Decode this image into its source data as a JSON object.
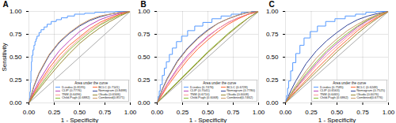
{
  "chart_data": [
    {
      "type": "line",
      "title": "A",
      "xlabel": "1 - Specificity",
      "ylabel": "Sensitivity",
      "xlim": [
        0,
        1
      ],
      "ylim": [
        0,
        1
      ],
      "xticks": [
        {
          "value": 0,
          "label": "0.00"
        },
        0.25,
        {
          "value": 0.5,
          "label": "0.50"
        },
        0.75,
        {
          "value": 1,
          "label": "1.00"
        }
      ],
      "yticks": [
        {
          "value": 0,
          "label": "0.00"
        },
        0.25,
        {
          "value": 0.5,
          "label": "0.50"
        },
        0.75,
        {
          "value": 1,
          "label": "1.00"
        }
      ],
      "grid": true,
      "legend": "lower right",
      "legend_title": "Area under the curve",
      "series": [
        {
          "color": "#aaaaaa",
          "type": "line",
          "x": [
            0,
            1
          ],
          "values": [
            0,
            1
          ]
        },
        {
          "name": "D-index (0.8195)",
          "color": "#5599FF",
          "type": "step",
          "x": [
            0,
            0.005,
            0.01,
            0.015,
            0.02,
            0.025,
            0.03,
            0.04,
            0.05,
            0.06,
            0.07,
            0.08,
            0.1,
            0.12,
            0.15,
            0.18,
            0.22,
            0.27,
            0.32,
            0.38,
            0.45,
            0.55,
            0.65,
            0.75,
            0.85,
            1.0
          ],
          "values": [
            0,
            0.05,
            0.12,
            0.22,
            0.35,
            0.45,
            0.52,
            0.58,
            0.63,
            0.67,
            0.7,
            0.73,
            0.77,
            0.8,
            0.83,
            0.86,
            0.89,
            0.91,
            0.93,
            0.95,
            0.97,
            0.98,
            0.99,
            0.995,
            1.0,
            1.0
          ]
        },
        {
          "name": "CLIP (0.7776)",
          "color": "#BB44BB",
          "type": "line",
          "x": [
            0,
            0.05,
            0.1,
            0.2,
            0.3,
            0.4,
            0.5,
            0.6,
            0.7,
            0.8,
            0.9,
            1.0
          ],
          "values": [
            0,
            0.13,
            0.24,
            0.42,
            0.57,
            0.68,
            0.78,
            0.85,
            0.91,
            0.95,
            0.98,
            1.0
          ]
        },
        {
          "name": "TNM (0.6496)",
          "color": "#FF9999",
          "type": "line",
          "x": [
            0,
            0.05,
            0.1,
            0.2,
            0.3,
            0.4,
            0.5,
            0.6,
            0.7,
            0.8,
            0.9,
            1.0
          ],
          "values": [
            0,
            0.1,
            0.19,
            0.35,
            0.48,
            0.6,
            0.7,
            0.79,
            0.86,
            0.92,
            0.97,
            1.0
          ]
        },
        {
          "name": "Child-Pugh (0.6882)",
          "color": "#88BB33",
          "type": "line",
          "x": [
            0,
            0.05,
            0.1,
            0.2,
            0.3,
            0.4,
            0.5,
            0.6,
            0.7,
            0.8,
            0.9,
            1.0
          ],
          "values": [
            0,
            0.09,
            0.17,
            0.32,
            0.46,
            0.58,
            0.68,
            0.77,
            0.85,
            0.91,
            0.96,
            1.0
          ]
        },
        {
          "name": "BCLC (0.7141)",
          "color": "#FF6633",
          "type": "line",
          "x": [
            0,
            0.05,
            0.1,
            0.2,
            0.3,
            0.4,
            0.5,
            0.6,
            0.7,
            0.8,
            0.9,
            1.0
          ],
          "values": [
            0,
            0.11,
            0.21,
            0.38,
            0.52,
            0.63,
            0.72,
            0.81,
            0.88,
            0.93,
            0.97,
            1.0
          ]
        },
        {
          "name": "Nomogram (0.8488)",
          "color": "#334499",
          "type": "line",
          "x": [
            0,
            0.05,
            0.1,
            0.2,
            0.3,
            0.4,
            0.5,
            0.6,
            0.7,
            0.8,
            0.9,
            1.0
          ],
          "values": [
            0,
            0.18,
            0.32,
            0.52,
            0.66,
            0.76,
            0.84,
            0.9,
            0.94,
            0.97,
            0.99,
            1.0
          ]
        },
        {
          "name": "Okuda (0.6346)",
          "color": "#998833",
          "type": "line",
          "x": [
            0,
            0.05,
            0.1,
            0.2,
            0.3,
            0.4,
            0.5,
            0.6,
            0.7,
            0.8,
            0.9,
            1.0
          ],
          "values": [
            0,
            0.08,
            0.15,
            0.29,
            0.42,
            0.54,
            0.65,
            0.74,
            0.82,
            0.89,
            0.95,
            1.0
          ]
        },
        {
          "name": "Combined(0.8571)",
          "color": "#CC9966",
          "type": "line",
          "x": [
            0,
            0.05,
            0.1,
            0.2,
            0.3,
            0.4,
            0.5,
            0.6,
            0.7,
            0.8,
            0.9,
            1.0
          ],
          "values": [
            0,
            0.19,
            0.33,
            0.53,
            0.67,
            0.77,
            0.85,
            0.91,
            0.95,
            0.97,
            0.99,
            1.0
          ]
        }
      ]
    },
    {
      "type": "line",
      "title": "B",
      "xlabel": "1 - Specificity",
      "xlim": [
        0,
        1
      ],
      "ylim": [
        0,
        1
      ],
      "xticks": [
        {
          "value": 0,
          "label": "0.00"
        },
        0.25,
        {
          "value": 0.5,
          "label": "0.50"
        },
        0.75,
        {
          "value": 1,
          "label": "1.00"
        }
      ],
      "yticks": [
        {
          "value": 0,
          "label": "0.00"
        },
        0.25,
        {
          "value": 0.5,
          "label": "0.50"
        },
        0.75,
        {
          "value": 1,
          "label": "1.00"
        }
      ],
      "grid": true,
      "legend": "lower right",
      "legend_title": "Area under the curve",
      "series": [
        {
          "color": "#aaaaaa",
          "type": "line",
          "x": [
            0,
            1
          ],
          "values": [
            0,
            1
          ]
        },
        {
          "name": "D-index (0.7476)",
          "color": "#5599FF",
          "type": "step",
          "x": [
            0,
            0.005,
            0.01,
            0.02,
            0.03,
            0.05,
            0.07,
            0.09,
            0.12,
            0.15,
            0.19,
            0.24,
            0.3,
            0.37,
            0.45,
            0.54,
            0.63,
            0.73,
            0.83,
            0.93,
            1.0
          ],
          "values": [
            0,
            0.03,
            0.07,
            0.13,
            0.2,
            0.3,
            0.38,
            0.45,
            0.53,
            0.6,
            0.67,
            0.73,
            0.79,
            0.84,
            0.88,
            0.92,
            0.95,
            0.97,
            0.99,
            1.0,
            1.0
          ]
        },
        {
          "name": "CLIP (0.7041)",
          "color": "#BB44BB",
          "type": "line",
          "x": [
            0,
            0.05,
            0.1,
            0.2,
            0.3,
            0.4,
            0.5,
            0.6,
            0.7,
            0.8,
            0.9,
            1.0
          ],
          "values": [
            0,
            0.11,
            0.21,
            0.38,
            0.52,
            0.63,
            0.73,
            0.81,
            0.88,
            0.93,
            0.97,
            1.0
          ]
        },
        {
          "name": "TNM (0.6710)",
          "color": "#FF9999",
          "type": "line",
          "x": [
            0,
            0.05,
            0.1,
            0.2,
            0.3,
            0.4,
            0.5,
            0.6,
            0.7,
            0.8,
            0.9,
            1.0
          ],
          "values": [
            0,
            0.1,
            0.2,
            0.36,
            0.5,
            0.62,
            0.72,
            0.81,
            0.88,
            0.93,
            0.97,
            1.0
          ]
        },
        {
          "name": "Child-Pugh (0.6068)",
          "color": "#88BB33",
          "type": "line",
          "x": [
            0,
            0.05,
            0.1,
            0.2,
            0.3,
            0.4,
            0.5,
            0.6,
            0.7,
            0.8,
            0.9,
            1.0
          ],
          "values": [
            0,
            0.06,
            0.12,
            0.23,
            0.34,
            0.45,
            0.56,
            0.66,
            0.76,
            0.85,
            0.93,
            1.0
          ]
        },
        {
          "name": "BCLC (0.6728)",
          "color": "#FF6633",
          "type": "line",
          "x": [
            0,
            0.05,
            0.1,
            0.2,
            0.3,
            0.4,
            0.5,
            0.6,
            0.7,
            0.8,
            0.9,
            1.0
          ],
          "values": [
            0,
            0.09,
            0.18,
            0.33,
            0.47,
            0.59,
            0.69,
            0.78,
            0.86,
            0.92,
            0.97,
            1.0
          ]
        },
        {
          "name": "Nomogram (0.7780)",
          "color": "#334499",
          "type": "line",
          "x": [
            0,
            0.05,
            0.1,
            0.2,
            0.3,
            0.4,
            0.5,
            0.6,
            0.7,
            0.8,
            0.9,
            1.0
          ],
          "values": [
            0,
            0.15,
            0.27,
            0.46,
            0.6,
            0.71,
            0.8,
            0.87,
            0.92,
            0.96,
            0.99,
            1.0
          ]
        },
        {
          "name": "Okuda (0.6008)",
          "color": "#998833",
          "type": "line",
          "x": [
            0,
            0.05,
            0.1,
            0.2,
            0.3,
            0.4,
            0.5,
            0.6,
            0.7,
            0.8,
            0.9,
            1.0
          ],
          "values": [
            0,
            0.06,
            0.11,
            0.22,
            0.33,
            0.44,
            0.55,
            0.65,
            0.75,
            0.84,
            0.93,
            1.0
          ]
        },
        {
          "name": "Combined(0.7462)",
          "color": "#CC9966",
          "type": "line",
          "x": [
            0,
            0.05,
            0.1,
            0.2,
            0.3,
            0.4,
            0.5,
            0.6,
            0.7,
            0.8,
            0.9,
            1.0
          ],
          "values": [
            0,
            0.14,
            0.26,
            0.45,
            0.59,
            0.7,
            0.79,
            0.87,
            0.92,
            0.96,
            0.99,
            1.0
          ]
        }
      ]
    },
    {
      "type": "line",
      "title": "C",
      "xlabel": "1 - Specificity",
      "xlim": [
        0,
        1
      ],
      "ylim": [
        0,
        1
      ],
      "xticks": [
        {
          "value": 0,
          "label": "0.00"
        },
        0.25,
        {
          "value": 0.5,
          "label": "0.50"
        },
        0.75,
        {
          "value": 1,
          "label": "1.00"
        }
      ],
      "yticks": [
        {
          "value": 0,
          "label": "0.00"
        },
        0.25,
        {
          "value": 0.5,
          "label": "0.50"
        },
        0.75,
        {
          "value": 1,
          "label": "1.00"
        }
      ],
      "grid": true,
      "legend": "lower right",
      "legend_title": "Area under the curve",
      "series": [
        {
          "color": "#aaaaaa",
          "type": "line",
          "x": [
            0,
            1
          ],
          "values": [
            0,
            1
          ]
        },
        {
          "name": "D-index (0.7585)",
          "color": "#5599FF",
          "type": "step",
          "x": [
            0,
            0.005,
            0.01,
            0.02,
            0.03,
            0.05,
            0.07,
            0.1,
            0.14,
            0.18,
            0.24,
            0.31,
            0.39,
            0.48,
            0.58,
            0.68,
            0.78,
            0.88,
            0.97,
            1.0
          ],
          "values": [
            0,
            0.04,
            0.08,
            0.16,
            0.24,
            0.35,
            0.44,
            0.54,
            0.63,
            0.71,
            0.78,
            0.84,
            0.89,
            0.92,
            0.95,
            0.97,
            0.99,
            1.0,
            1.0,
            1.0
          ]
        },
        {
          "name": "CLIP (0.6563)",
          "color": "#BB44BB",
          "type": "line",
          "x": [
            0,
            0.05,
            0.1,
            0.2,
            0.3,
            0.4,
            0.5,
            0.6,
            0.7,
            0.8,
            0.9,
            1.0
          ],
          "values": [
            0,
            0.08,
            0.16,
            0.3,
            0.43,
            0.55,
            0.65,
            0.74,
            0.83,
            0.9,
            0.96,
            1.0
          ]
        },
        {
          "name": "TNM (0.6465)",
          "color": "#FF9999",
          "type": "line",
          "x": [
            0,
            0.05,
            0.1,
            0.2,
            0.3,
            0.4,
            0.5,
            0.6,
            0.7,
            0.8,
            0.9,
            1.0
          ],
          "values": [
            0,
            0.08,
            0.15,
            0.28,
            0.41,
            0.52,
            0.62,
            0.72,
            0.81,
            0.88,
            0.95,
            1.0
          ]
        },
        {
          "name": "Child-Pugh (0.6862)",
          "color": "#88BB33",
          "type": "line",
          "x": [
            0,
            0.05,
            0.1,
            0.2,
            0.3,
            0.4,
            0.5,
            0.6,
            0.7,
            0.8,
            0.9,
            1.0
          ],
          "values": [
            0,
            0.09,
            0.17,
            0.32,
            0.45,
            0.57,
            0.67,
            0.76,
            0.84,
            0.91,
            0.96,
            1.0
          ]
        },
        {
          "name": "BCLC (0.6248)",
          "color": "#FF6633",
          "type": "line",
          "x": [
            0,
            0.05,
            0.1,
            0.2,
            0.3,
            0.4,
            0.5,
            0.6,
            0.7,
            0.8,
            0.9,
            1.0
          ],
          "values": [
            0,
            0.07,
            0.13,
            0.25,
            0.37,
            0.48,
            0.59,
            0.69,
            0.79,
            0.87,
            0.94,
            1.0
          ]
        },
        {
          "name": "Nomogram (0.7525)",
          "color": "#334499",
          "type": "line",
          "x": [
            0,
            0.05,
            0.1,
            0.2,
            0.3,
            0.4,
            0.5,
            0.6,
            0.7,
            0.8,
            0.9,
            1.0
          ],
          "values": [
            0,
            0.13,
            0.24,
            0.43,
            0.57,
            0.68,
            0.77,
            0.85,
            0.91,
            0.95,
            0.98,
            1.0
          ]
        },
        {
          "name": "Okuda (0.6076)",
          "color": "#998833",
          "type": "line",
          "x": [
            0,
            0.05,
            0.1,
            0.2,
            0.3,
            0.4,
            0.5,
            0.6,
            0.7,
            0.8,
            0.9,
            1.0
          ],
          "values": [
            0,
            0.06,
            0.12,
            0.23,
            0.34,
            0.45,
            0.56,
            0.66,
            0.76,
            0.85,
            0.93,
            1.0
          ]
        },
        {
          "name": "Combined(0.6776)",
          "color": "#CC9966",
          "type": "line",
          "x": [
            0,
            0.05,
            0.1,
            0.2,
            0.3,
            0.4,
            0.5,
            0.6,
            0.7,
            0.8,
            0.9,
            1.0
          ],
          "values": [
            0,
            0.1,
            0.19,
            0.35,
            0.49,
            0.6,
            0.7,
            0.79,
            0.86,
            0.92,
            0.97,
            1.0
          ]
        }
      ]
    }
  ]
}
